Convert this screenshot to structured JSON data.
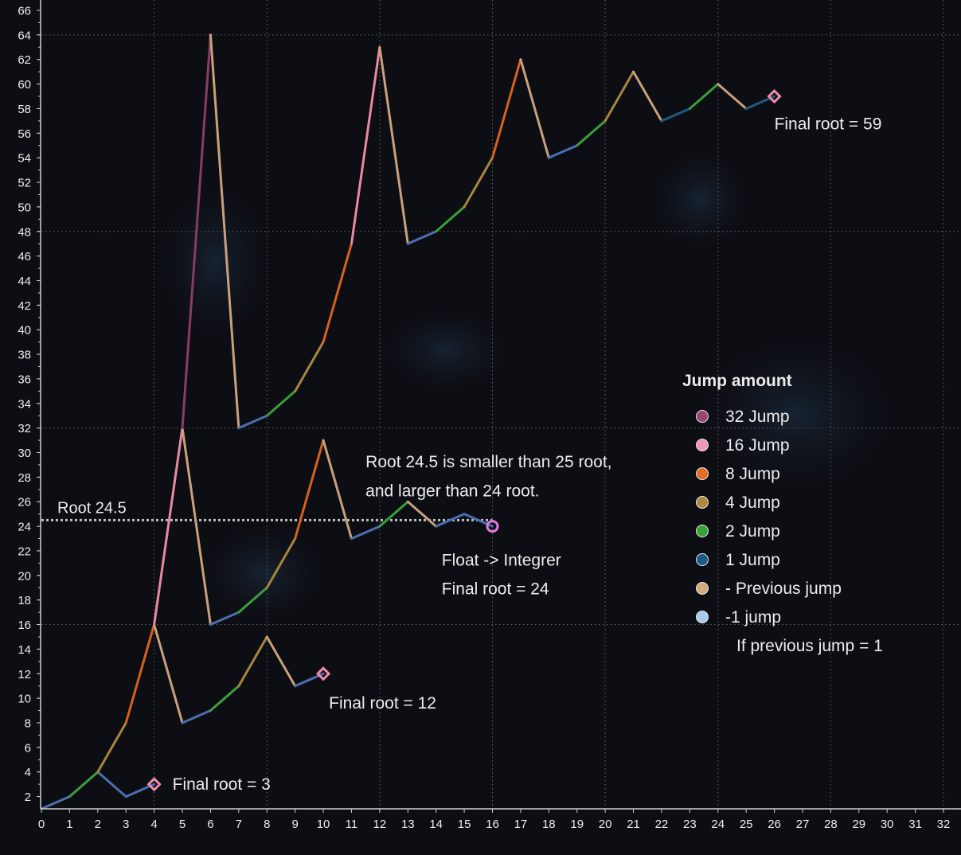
{
  "chart_data": {
    "type": "line",
    "xlim": [
      0,
      32
    ],
    "ylim": [
      1,
      66
    ],
    "x_ticks": [
      0,
      1,
      2,
      3,
      4,
      5,
      6,
      7,
      8,
      9,
      10,
      11,
      12,
      13,
      14,
      15,
      16,
      17,
      18,
      19,
      20,
      21,
      22,
      23,
      24,
      25,
      26,
      27,
      28,
      29,
      30,
      31,
      32
    ],
    "y_ticks": [
      2,
      4,
      6,
      8,
      10,
      12,
      14,
      16,
      18,
      20,
      22,
      24,
      26,
      28,
      30,
      32,
      34,
      36,
      38,
      40,
      42,
      44,
      46,
      48,
      50,
      52,
      54,
      56,
      58,
      60,
      62,
      64,
      66
    ],
    "grid": "dotted at y = 16, 32, 48, 64",
    "grid_y": [
      16,
      32,
      48,
      64
    ],
    "colors": {
      "background": "#0d0e14",
      "axis": "#cfcfcf",
      "text": "#ececec",
      "grid": "#7a7a7a",
      "jump32": "#8a3c63",
      "jump16": "#e88aa0",
      "jump8": "#d6611f",
      "jump4": "#a8853e",
      "jump2": "#3a9e3a",
      "jump1": "#1f5a82",
      "prev": "#c9a07c",
      "minus1": "#4b6fb0",
      "marker": "#f08aaa",
      "circle_marker": "#e27ae0",
      "reference": "#bdbdbd"
    },
    "series": [
      {
        "segments": [
          {
            "from": [
              0,
              1
            ],
            "to": [
              1,
              2
            ],
            "kind": "minus1"
          },
          {
            "from": [
              1,
              2
            ],
            "to": [
              2,
              4
            ],
            "kind": "jump2"
          },
          {
            "from": [
              2,
              4
            ],
            "to": [
              3,
              2
            ],
            "kind": "minus1"
          },
          {
            "from": [
              3,
              2
            ],
            "to": [
              4,
              3
            ],
            "kind": "minus1"
          }
        ],
        "final": {
          "x": 4,
          "y": 3,
          "marker": "diamond"
        }
      },
      {
        "segments": [
          {
            "from": [
              2,
              4
            ],
            "to": [
              3,
              8
            ],
            "kind": "jump4"
          },
          {
            "from": [
              3,
              8
            ],
            "to": [
              4,
              16
            ],
            "kind": "jump8"
          },
          {
            "from": [
              4,
              16
            ],
            "to": [
              5,
              8
            ],
            "kind": "prev"
          },
          {
            "from": [
              5,
              8
            ],
            "to": [
              6,
              9
            ],
            "kind": "minus1"
          },
          {
            "from": [
              6,
              9
            ],
            "to": [
              7,
              11
            ],
            "kind": "jump2"
          },
          {
            "from": [
              7,
              11
            ],
            "to": [
              8,
              15
            ],
            "kind": "jump4"
          },
          {
            "from": [
              8,
              15
            ],
            "to": [
              9,
              11
            ],
            "kind": "prev"
          },
          {
            "from": [
              9,
              11
            ],
            "to": [
              10,
              12
            ],
            "kind": "minus1"
          }
        ],
        "final": {
          "x": 10,
          "y": 12,
          "marker": "diamond"
        }
      },
      {
        "segments": [
          {
            "from": [
              4,
              16
            ],
            "to": [
              5,
              32
            ],
            "kind": "jump16"
          },
          {
            "from": [
              5,
              32
            ],
            "to": [
              6,
              16
            ],
            "kind": "prev"
          },
          {
            "from": [
              6,
              16
            ],
            "to": [
              7,
              17
            ],
            "kind": "minus1"
          },
          {
            "from": [
              7,
              17
            ],
            "to": [
              8,
              19
            ],
            "kind": "jump2"
          },
          {
            "from": [
              8,
              19
            ],
            "to": [
              9,
              23
            ],
            "kind": "jump4"
          },
          {
            "from": [
              9,
              23
            ],
            "to": [
              10,
              31
            ],
            "kind": "jump8"
          },
          {
            "from": [
              10,
              31
            ],
            "to": [
              11,
              23
            ],
            "kind": "prev"
          },
          {
            "from": [
              11,
              23
            ],
            "to": [
              12,
              24
            ],
            "kind": "minus1"
          },
          {
            "from": [
              12,
              24
            ],
            "to": [
              13,
              26
            ],
            "kind": "jump2"
          },
          {
            "from": [
              13,
              26
            ],
            "to": [
              14,
              24
            ],
            "kind": "prev"
          },
          {
            "from": [
              14,
              24
            ],
            "to": [
              15,
              25
            ],
            "kind": "minus1"
          },
          {
            "from": [
              15,
              25
            ],
            "to": [
              16,
              24
            ],
            "kind": "minus1"
          }
        ],
        "final": {
          "x": 16,
          "y": 24,
          "marker": "circle"
        }
      },
      {
        "segments": [
          {
            "from": [
              5,
              32
            ],
            "to": [
              6,
              64
            ],
            "kind": "jump32"
          },
          {
            "from": [
              6,
              64
            ],
            "to": [
              7,
              32
            ],
            "kind": "prev"
          },
          {
            "from": [
              7,
              32
            ],
            "to": [
              8,
              33
            ],
            "kind": "minus1"
          },
          {
            "from": [
              8,
              33
            ],
            "to": [
              9,
              35
            ],
            "kind": "jump2"
          },
          {
            "from": [
              9,
              35
            ],
            "to": [
              10,
              39
            ],
            "kind": "jump4"
          },
          {
            "from": [
              10,
              39
            ],
            "to": [
              11,
              47
            ],
            "kind": "jump8"
          },
          {
            "from": [
              11,
              47
            ],
            "to": [
              12,
              63
            ],
            "kind": "jump16"
          },
          {
            "from": [
              12,
              63
            ],
            "to": [
              13,
              47
            ],
            "kind": "prev"
          },
          {
            "from": [
              13,
              47
            ],
            "to": [
              14,
              48
            ],
            "kind": "minus1"
          },
          {
            "from": [
              14,
              48
            ],
            "to": [
              15,
              50
            ],
            "kind": "jump2"
          },
          {
            "from": [
              15,
              50
            ],
            "to": [
              16,
              54
            ],
            "kind": "jump4"
          },
          {
            "from": [
              16,
              54
            ],
            "to": [
              17,
              62
            ],
            "kind": "jump8"
          },
          {
            "from": [
              17,
              62
            ],
            "to": [
              18,
              54
            ],
            "kind": "prev"
          },
          {
            "from": [
              18,
              54
            ],
            "to": [
              19,
              55
            ],
            "kind": "minus1"
          },
          {
            "from": [
              19,
              55
            ],
            "to": [
              20,
              57
            ],
            "kind": "jump2"
          },
          {
            "from": [
              20,
              57
            ],
            "to": [
              21,
              61
            ],
            "kind": "jump4"
          },
          {
            "from": [
              21,
              61
            ],
            "to": [
              22,
              57
            ],
            "kind": "prev"
          },
          {
            "from": [
              22,
              57
            ],
            "to": [
              23,
              58
            ],
            "kind": "jump1"
          },
          {
            "from": [
              23,
              58
            ],
            "to": [
              24,
              60
            ],
            "kind": "jump2"
          },
          {
            "from": [
              24,
              60
            ],
            "to": [
              25,
              58
            ],
            "kind": "prev"
          },
          {
            "from": [
              25,
              58
            ],
            "to": [
              26,
              59
            ],
            "kind": "jump1"
          }
        ],
        "final": {
          "x": 26,
          "y": 59,
          "marker": "diamond"
        }
      }
    ],
    "reference_line": {
      "y": 24.5,
      "x_from": 0,
      "x_to": 16,
      "label": "Root 24.5"
    },
    "annotations": [
      {
        "text": "Final root = 3",
        "x": 4.65,
        "y": 2.55
      },
      {
        "text": "Final root = 12",
        "x": 10.2,
        "y": 9.15
      },
      {
        "text": "Root 24.5 is smaller than 25 root,",
        "x": 11.5,
        "y": 28.8
      },
      {
        "text": "and larger than 24 root.",
        "x": 11.5,
        "y": 26.45
      },
      {
        "text": "Float -> Integrer",
        "x": 14.2,
        "y": 20.8
      },
      {
        "text": "Final root = 24",
        "x": 14.2,
        "y": 18.45
      },
      {
        "text": "Final root = 59",
        "x": 26.0,
        "y": 56.3
      }
    ],
    "legend": {
      "title": "Jump amount",
      "position": "right",
      "entries": [
        {
          "kind": "jump32",
          "label": "32 Jump"
        },
        {
          "kind": "jump16",
          "label": "16 Jump"
        },
        {
          "kind": "jump8",
          "label": "8 Jump"
        },
        {
          "kind": "jump4",
          "label": "4 Jump"
        },
        {
          "kind": "jump2",
          "label": "2 Jump"
        },
        {
          "kind": "jump1",
          "label": "1 Jump"
        },
        {
          "kind": "prev",
          "label": "- Previous jump"
        },
        {
          "kind": "minus1",
          "label": "-1 jump"
        }
      ],
      "note": "If previous jump = 1",
      "swatch_colors": {
        "jump32": "#98466f",
        "jump16": "#ef97b6",
        "jump8": "#e36d24",
        "jump4": "#ad8a3f",
        "jump2": "#37a336",
        "jump1": "#1d5a86",
        "prev": "#d6a87f",
        "minus1": "#a9cbee"
      }
    }
  }
}
